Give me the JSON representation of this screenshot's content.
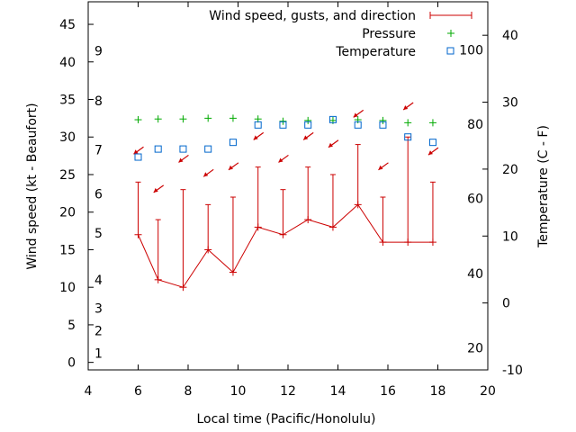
{
  "chart_data": {
    "type": "line",
    "xlabel": "Local time (Pacific/Honolulu)",
    "ylabel": "Wind speed (kt - Beaufort)",
    "y2label": "Temperature (C - F)",
    "xlim": [
      4,
      20
    ],
    "xticks": [
      4,
      6,
      8,
      10,
      12,
      14,
      16,
      18,
      20
    ],
    "ylim": [
      -1,
      48
    ],
    "yticks": [
      0,
      5,
      10,
      15,
      20,
      25,
      30,
      35,
      40,
      45
    ],
    "y2lim": [
      -10,
      45
    ],
    "y2ticks": [
      -10,
      0,
      10,
      20,
      30,
      40
    ],
    "beaufort_scale": [
      {
        "label": "1",
        "value": 1.2
      },
      {
        "label": "2",
        "value": 4.2
      },
      {
        "label": "3",
        "value": 7.2
      },
      {
        "label": "4",
        "value": 11
      },
      {
        "label": "5",
        "value": 17.2
      },
      {
        "label": "6",
        "value": 22.4
      },
      {
        "label": "7",
        "value": 28.3
      },
      {
        "label": "8",
        "value": 34.8
      },
      {
        "label": "9",
        "value": 41.5
      }
    ],
    "fahrenheit_scale": [
      {
        "label": "20",
        "value": -6.7
      },
      {
        "label": "40",
        "value": 4.4
      },
      {
        "label": "60",
        "value": 15.6
      },
      {
        "label": "80",
        "value": 26.7
      },
      {
        "label": "100",
        "value": 37.8
      }
    ],
    "grid": false,
    "legend_position": "top-right",
    "series": [
      {
        "name": "Wind speed, gusts, and direction",
        "color": "#cc0000",
        "x": [
          6,
          6.8,
          7.8,
          8.8,
          9.8,
          10.8,
          11.8,
          12.8,
          13.8,
          14.8,
          15.8,
          16.8,
          17.8
        ],
        "wind_speed": [
          17,
          11,
          10,
          15,
          12,
          18,
          17,
          19,
          18,
          21,
          16,
          16,
          16
        ],
        "gusts": [
          24,
          19,
          23,
          21,
          22,
          26,
          23,
          26,
          25,
          29,
          22,
          30,
          24
        ],
        "arrow_y": [
          28.2,
          23.1,
          27.1,
          25.2,
          26.1,
          30.1,
          27.1,
          30.1,
          29.1,
          33.1,
          26.1,
          34.1,
          28.1
        ],
        "arrow_direction": [
          "NE",
          "NE",
          "NE",
          "NE",
          "NE",
          "NE",
          "NE",
          "NE",
          "NE",
          "NE",
          "NE",
          "NE",
          "NE"
        ]
      },
      {
        "name": "Pressure",
        "color": "#00aa00",
        "x": [
          6,
          6.8,
          7.8,
          8.8,
          9.8,
          10.8,
          11.8,
          12.8,
          13.8,
          14.8,
          15.8,
          16.8,
          17.8
        ],
        "y": [
          32.3,
          32.4,
          32.4,
          32.5,
          32.5,
          32.4,
          32.1,
          32.2,
          32.2,
          32.3,
          32.2,
          31.9,
          31.9
        ]
      },
      {
        "name": "Temperature",
        "color": "#0066cc",
        "x": [
          6,
          6.8,
          7.8,
          8.8,
          9.8,
          10.8,
          11.8,
          12.8,
          13.8,
          14.8,
          15.8,
          16.8,
          17.8
        ],
        "y": [
          21.8,
          23.0,
          23.0,
          23.0,
          24.0,
          26.6,
          26.6,
          26.6,
          27.4,
          26.6,
          26.6,
          24.8,
          24.0
        ]
      }
    ]
  }
}
